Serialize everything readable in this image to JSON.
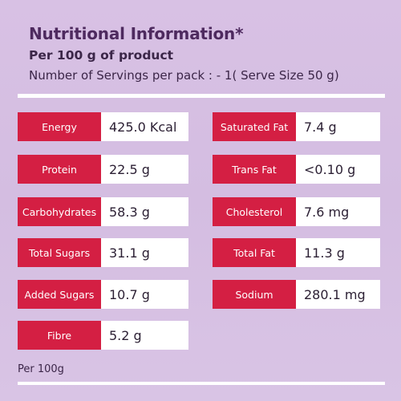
{
  "header": {
    "title": "Nutritional Information*",
    "subtitle": "Per 100 g of product",
    "servings": "Number of Servings per pack :   - 1( Serve Size 50 g)"
  },
  "nutrients_left": [
    {
      "label": "Energy",
      "value": "425.0 Kcal"
    },
    {
      "label": "Protein",
      "value": "22.5 g"
    },
    {
      "label": "Carbohydrates",
      "value": "58.3 g"
    },
    {
      "label": "Total Sugars",
      "value": "31.1 g"
    },
    {
      "label": "Added Sugars",
      "value": "10.7 g"
    },
    {
      "label": "Fibre",
      "value": "5.2 g"
    }
  ],
  "nutrients_right": [
    {
      "label": "Saturated Fat",
      "value": "7.4 g"
    },
    {
      "label": "Trans Fat",
      "value": "<0.10 g"
    },
    {
      "label": "Cholesterol",
      "value": "7.6 mg"
    },
    {
      "label": "Total Fat",
      "value": "11.3 g"
    },
    {
      "label": "Sodium",
      "value": "280.1 mg"
    }
  ],
  "footer": {
    "note": "Per 100g"
  },
  "colors": {
    "background": "#d8c1e4",
    "label_red": "#d41f43",
    "title_purple": "#4e2a5f",
    "value_bg": "#ffffff"
  }
}
